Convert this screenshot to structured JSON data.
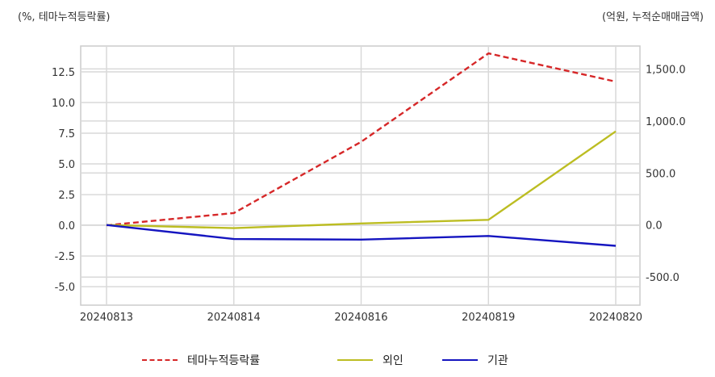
{
  "chart_data": {
    "type": "line",
    "left_axis_label": "(%, 테마누적등락률)",
    "right_axis_label": "(억원, 누적순매매금액)",
    "categories": [
      "20240813",
      "20240814",
      "20240816",
      "20240819",
      "20240820"
    ],
    "left_axis": {
      "ylim": [
        -6.5,
        14.6
      ],
      "ticks": [
        -5.0,
        -2.5,
        0.0,
        2.5,
        5.0,
        7.5,
        10.0,
        12.5
      ],
      "tick_labels": [
        "-5.0",
        "-2.5",
        "0.0",
        "2.5",
        "5.0",
        "7.5",
        "10.0",
        "12.5"
      ]
    },
    "right_axis": {
      "ylim": [
        -770,
        1720
      ],
      "ticks": [
        -500,
        0,
        500,
        1000,
        1500
      ],
      "tick_labels": [
        "-500.0",
        "0.0",
        "500.0",
        "1,000.0",
        "1,500.0"
      ]
    },
    "grid": true,
    "legend_position": "bottom",
    "series": [
      {
        "name": "테마누적등락률",
        "axis": "left",
        "color": "#d62728",
        "dashed": true,
        "values": [
          0.0,
          1.0,
          6.8,
          14.0,
          11.7
        ]
      },
      {
        "name": "외인",
        "axis": "right",
        "color": "#bcbd22",
        "dashed": false,
        "values": [
          0,
          -30,
          15,
          50,
          900
        ]
      },
      {
        "name": "기관",
        "axis": "right",
        "color": "#1515c0",
        "dashed": false,
        "values": [
          0,
          -135,
          -140,
          -105,
          -200
        ]
      }
    ]
  }
}
